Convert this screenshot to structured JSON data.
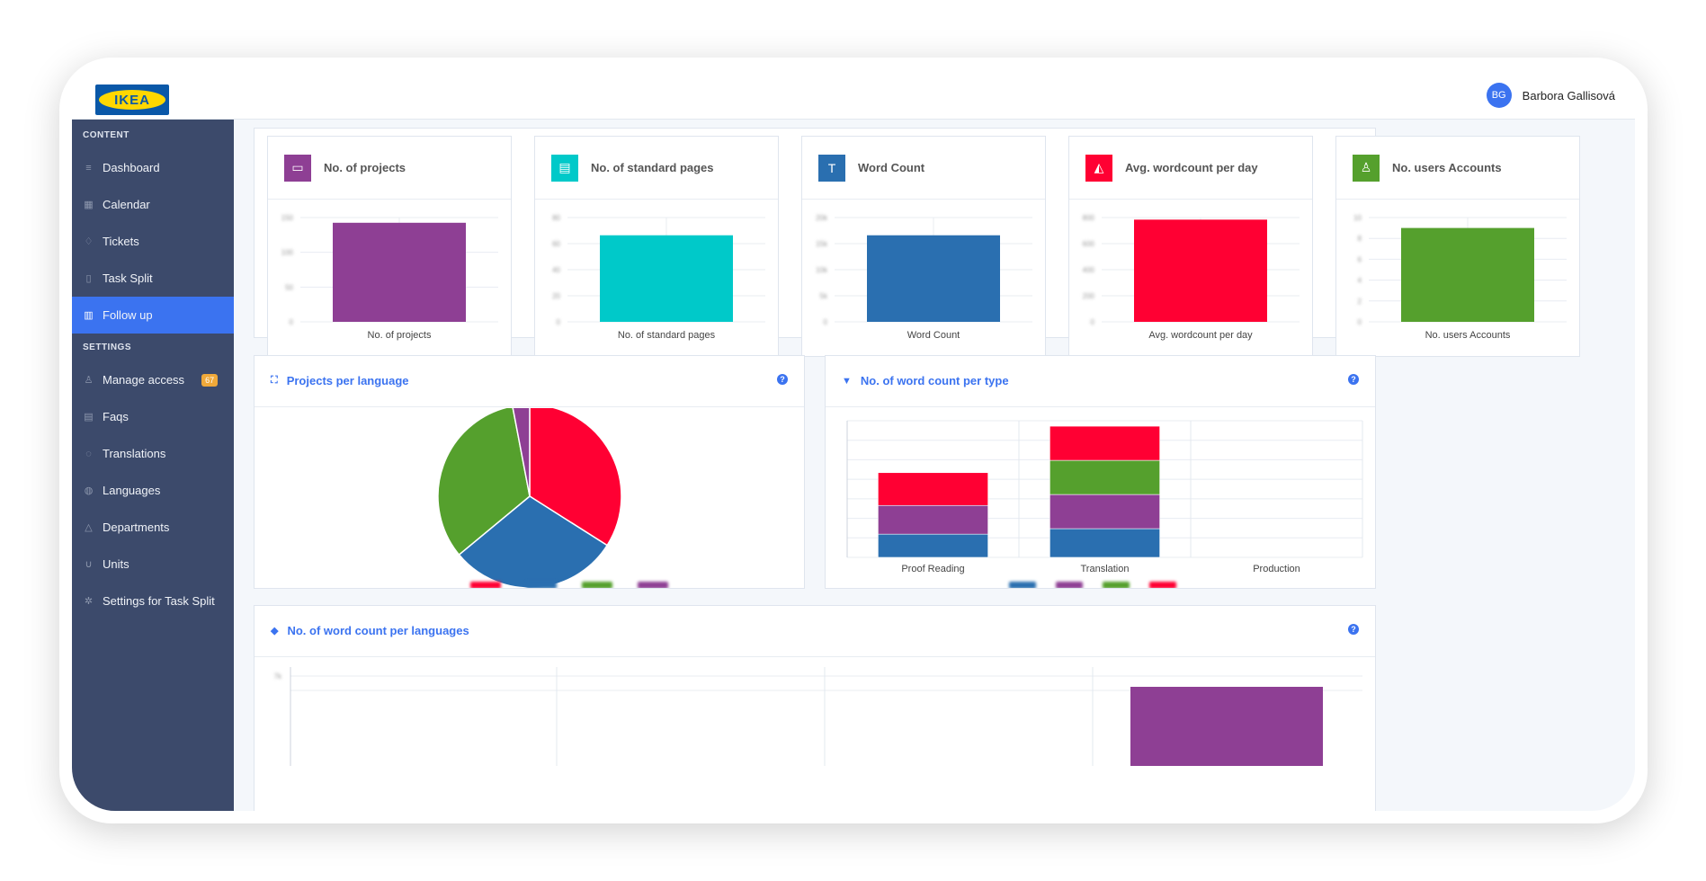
{
  "brand": {
    "logo_text": "IKEA"
  },
  "user": {
    "initials": "BG",
    "name": "Barbora Gallisová"
  },
  "sidebar": {
    "content_title": "CONTENT",
    "content_items": [
      {
        "label": "Dashboard",
        "icon": "list-icon"
      },
      {
        "label": "Calendar",
        "icon": "calendar-icon"
      },
      {
        "label": "Tickets",
        "icon": "lightbulb-icon"
      },
      {
        "label": "Task Split",
        "icon": "document-icon"
      },
      {
        "label": "Follow up",
        "icon": "chart-icon",
        "active": true
      }
    ],
    "settings_title": "SETTINGS",
    "settings_items": [
      {
        "label": "Manage access",
        "icon": "user-icon",
        "badge": "67"
      },
      {
        "label": "Faqs",
        "icon": "faq-icon"
      },
      {
        "label": "Translations",
        "icon": "pin-icon"
      },
      {
        "label": "Languages",
        "icon": "globe-icon"
      },
      {
        "label": "Departments",
        "icon": "bell-icon"
      },
      {
        "label": "Units",
        "icon": "magnet-icon"
      },
      {
        "label": "Settings for Task Split",
        "icon": "gears-icon"
      }
    ]
  },
  "stats": [
    {
      "title": "No. of projects",
      "icon": "folder-icon",
      "color": "#8e3f94",
      "xlabel": "No. of projects",
      "ticks": [
        "150",
        "100",
        "50",
        "0"
      ],
      "value": 0.95
    },
    {
      "title": "No. of standard pages",
      "icon": "page-icon",
      "color": "#00c9c9",
      "xlabel": "No. of standard pages",
      "ticks": [
        "80",
        "60",
        "40",
        "20",
        "0"
      ],
      "value": 0.83
    },
    {
      "title": "Word Count",
      "icon": "text-icon",
      "color": "#2a6fb0",
      "xlabel": "Word Count",
      "ticks": [
        "20k",
        "15k",
        "10k",
        "5k",
        "0"
      ],
      "value": 0.83
    },
    {
      "title": "Avg. wordcount per day",
      "icon": "area-chart-icon",
      "color": "#ff0033",
      "xlabel": "Avg. wordcount per day",
      "ticks": [
        "800",
        "600",
        "400",
        "200",
        "0"
      ],
      "value": 0.98
    },
    {
      "title": "No. users Accounts",
      "icon": "user-icon",
      "color": "#55a02d",
      "xlabel": "No. users Accounts",
      "ticks": [
        "10",
        "8",
        "6",
        "4",
        "2",
        "0"
      ],
      "value": 0.9
    }
  ],
  "pie_card": {
    "title": "Projects per language",
    "help": "?"
  },
  "stack_card": {
    "title": "No. of word count per type",
    "help": "?"
  },
  "lang_card": {
    "title": "No. of word count per languages",
    "help": "?",
    "tick": "7k"
  },
  "chart_data": [
    {
      "type": "pie",
      "slices": [
        {
          "value": 34,
          "color": "#ff0033"
        },
        {
          "value": 30,
          "color": "#2a6fb0"
        },
        {
          "value": 33,
          "color": "#55a02d"
        },
        {
          "value": 3,
          "color": "#8e3f94"
        }
      ]
    },
    {
      "type": "bar",
      "stacked": true,
      "categories": [
        "Proof Reading",
        "Translation",
        "Production"
      ],
      "series": [
        {
          "color": "#2a6fb0",
          "values": [
            17,
            21,
            0
          ]
        },
        {
          "color": "#8e3f94",
          "values": [
            21,
            25,
            0
          ]
        },
        {
          "color": "#55a02d",
          "values": [
            0,
            25,
            0
          ]
        },
        {
          "color": "#ff0033",
          "values": [
            24,
            25,
            0
          ]
        }
      ],
      "ylim": [
        0,
        100
      ]
    }
  ]
}
